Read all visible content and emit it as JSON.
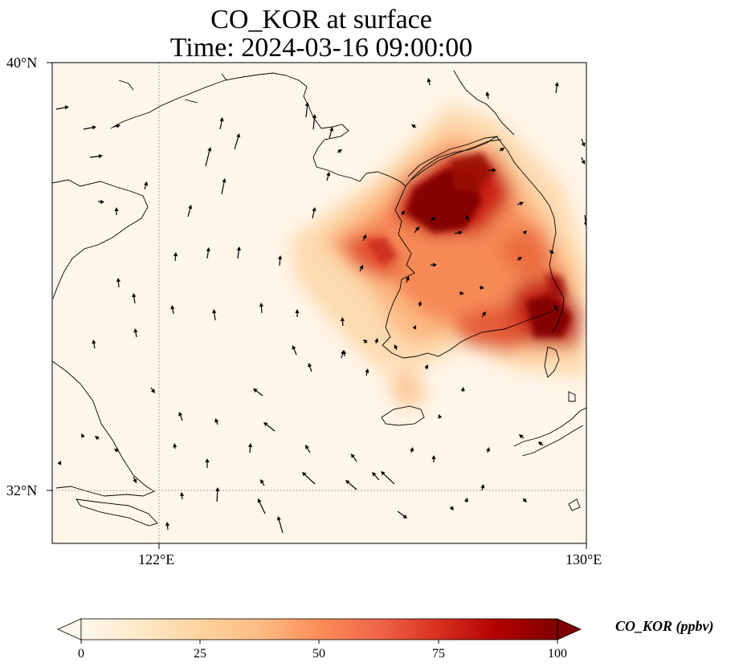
{
  "title": {
    "line1": "CO_KOR at surface",
    "line2": "Time: 2024-03-16 09:00:00"
  },
  "map": {
    "extent": {
      "lon": [
        120,
        130
      ],
      "lat": [
        31,
        40
      ]
    },
    "gridlines": {
      "lons": [
        122,
        130
      ],
      "lats": [
        32,
        40
      ]
    },
    "lat_ticks": [
      "40°N",
      "32°N"
    ],
    "lon_ticks": [
      "122°E",
      "130°E"
    ],
    "plume_hotspots": [
      {
        "lon": 126.6,
        "lat": 37.3,
        "value": 100
      },
      {
        "lon": 127.4,
        "lat": 37.7,
        "value": 90
      },
      {
        "lon": 125.6,
        "lat": 36.6,
        "value": 70
      },
      {
        "lon": 129.3,
        "lat": 35.5,
        "value": 95
      },
      {
        "lon": 128.6,
        "lat": 35.9,
        "value": 80
      },
      {
        "lon": 126.2,
        "lat": 35.4,
        "value": 55
      },
      {
        "lon": 127.6,
        "lat": 35.0,
        "value": 60
      },
      {
        "lon": 128.4,
        "lat": 36.9,
        "value": 50
      }
    ]
  },
  "colorbar": {
    "label": "CO_KOR (ppbv)",
    "min": 0,
    "max": 100,
    "ticks": [
      "0",
      "25",
      "50",
      "75",
      "100"
    ],
    "colormap": "OrRd",
    "colors": [
      "#fff7ec",
      "#fee8c8",
      "#fdd49e",
      "#fdbb84",
      "#fc8d59",
      "#ef6548",
      "#d7301f",
      "#b30000",
      "#7f0000"
    ]
  }
}
